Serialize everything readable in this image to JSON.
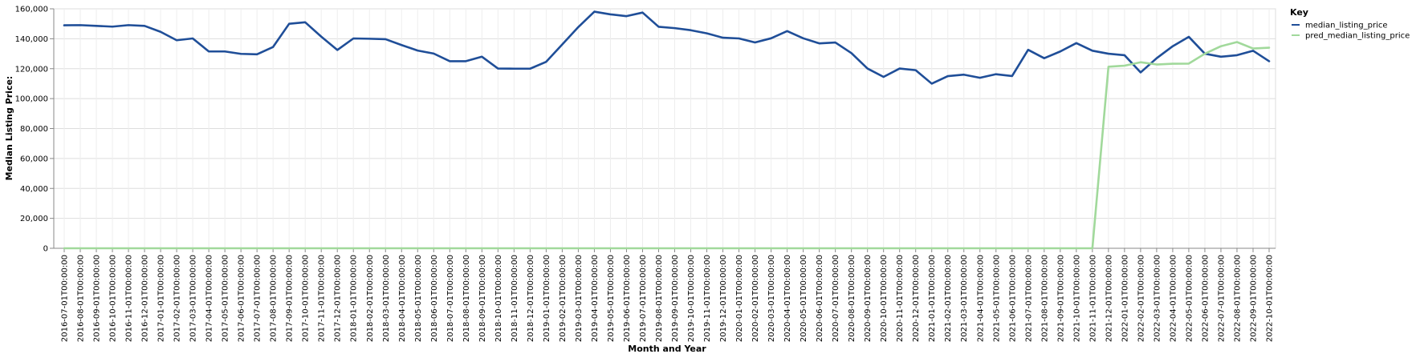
{
  "chart_data": {
    "type": "line",
    "xlabel": "Month and Year",
    "ylabel": "Median Listing Price:",
    "ylim": [
      0,
      160000
    ],
    "yticks": [
      "0",
      "20,000",
      "40,000",
      "60,000",
      "80,000",
      "100,000",
      "120,000",
      "140,000",
      "160,000"
    ],
    "ytick_values": [
      0,
      20000,
      40000,
      60000,
      80000,
      100000,
      120000,
      140000,
      160000
    ],
    "grid": true,
    "legend": {
      "title": "Key",
      "placement": "top-right"
    },
    "x": [
      "2016-07-01T00:00:00",
      "2016-08-01T00:00:00",
      "2016-09-01T00:00:00",
      "2016-10-01T00:00:00",
      "2016-11-01T00:00:00",
      "2016-12-01T00:00:00",
      "2017-01-01T00:00:00",
      "2017-02-01T00:00:00",
      "2017-03-01T00:00:00",
      "2017-04-01T00:00:00",
      "2017-05-01T00:00:00",
      "2017-06-01T00:00:00",
      "2017-07-01T00:00:00",
      "2017-08-01T00:00:00",
      "2017-09-01T00:00:00",
      "2017-10-01T00:00:00",
      "2017-11-01T00:00:00",
      "2017-12-01T00:00:00",
      "2018-01-01T00:00:00",
      "2018-02-01T00:00:00",
      "2018-03-01T00:00:00",
      "2018-04-01T00:00:00",
      "2018-05-01T00:00:00",
      "2018-06-01T00:00:00",
      "2018-07-01T00:00:00",
      "2018-08-01T00:00:00",
      "2018-09-01T00:00:00",
      "2018-10-01T00:00:00",
      "2018-11-01T00:00:00",
      "2018-12-01T00:00:00",
      "2019-01-01T00:00:00",
      "2019-02-01T00:00:00",
      "2019-03-01T00:00:00",
      "2019-04-01T00:00:00",
      "2019-05-01T00:00:00",
      "2019-06-01T00:00:00",
      "2019-07-01T00:00:00",
      "2019-08-01T00:00:00",
      "2019-09-01T00:00:00",
      "2019-10-01T00:00:00",
      "2019-11-01T00:00:00",
      "2019-12-01T00:00:00",
      "2020-01-01T00:00:00",
      "2020-02-01T00:00:00",
      "2020-03-01T00:00:00",
      "2020-04-01T00:00:00",
      "2020-05-01T00:00:00",
      "2020-06-01T00:00:00",
      "2020-07-01T00:00:00",
      "2020-08-01T00:00:00",
      "2020-09-01T00:00:00",
      "2020-10-01T00:00:00",
      "2020-11-01T00:00:00",
      "2020-12-01T00:00:00",
      "2021-01-01T00:00:00",
      "2021-02-01T00:00:00",
      "2021-03-01T00:00:00",
      "2021-04-01T00:00:00",
      "2021-05-01T00:00:00",
      "2021-06-01T00:00:00",
      "2021-07-01T00:00:00",
      "2021-08-01T00:00:00",
      "2021-09-01T00:00:00",
      "2021-10-01T00:00:00",
      "2021-11-01T00:00:00",
      "2021-12-01T00:00:00",
      "2022-01-01T00:00:00",
      "2022-02-01T00:00:00",
      "2022-03-01T00:00:00",
      "2022-04-01T00:00:00",
      "2022-05-01T00:00:00",
      "2022-06-01T00:00:00",
      "2022-07-01T00:00:00",
      "2022-08-01T00:00:00",
      "2022-09-01T00:00:00",
      "2022-10-01T00:00:00"
    ],
    "series": [
      {
        "name": "median_listing_price",
        "color": "#1f4e98",
        "values": [
          149000,
          149100,
          148600,
          148100,
          149100,
          148600,
          144600,
          139000,
          140200,
          131500,
          131500,
          129900,
          129600,
          134500,
          150000,
          151000,
          141400,
          132500,
          140200,
          140000,
          139700,
          135800,
          132100,
          130100,
          125000,
          125000,
          128000,
          120100,
          120000,
          120000,
          124600,
          136200,
          147800,
          158100,
          156300,
          155100,
          157500,
          148000,
          147100,
          145700,
          143600,
          140700,
          140200,
          137500,
          140300,
          145100,
          140300,
          136900,
          137500,
          130400,
          120100,
          114500,
          120100,
          119000,
          110000,
          115000,
          116000,
          113900,
          116300,
          115100,
          132600,
          127000,
          131500,
          137100,
          132000,
          130000,
          129000,
          117500,
          127000,
          135000,
          141300,
          130000,
          128000,
          129000,
          132000,
          125000
        ]
      },
      {
        "name": "pred_median_listing_price",
        "color": "#a1d99b",
        "values": [
          0,
          0,
          0,
          0,
          0,
          0,
          0,
          0,
          0,
          0,
          0,
          0,
          0,
          0,
          0,
          0,
          0,
          0,
          0,
          0,
          0,
          0,
          0,
          0,
          0,
          0,
          0,
          0,
          0,
          0,
          0,
          0,
          0,
          0,
          0,
          0,
          0,
          0,
          0,
          0,
          0,
          0,
          0,
          0,
          0,
          0,
          0,
          0,
          0,
          0,
          0,
          0,
          0,
          0,
          0,
          0,
          0,
          0,
          0,
          0,
          0,
          0,
          0,
          0,
          0,
          121300,
          122000,
          124300,
          122800,
          123300,
          123400,
          130000,
          135000,
          137800,
          133500,
          134000
        ]
      }
    ]
  }
}
